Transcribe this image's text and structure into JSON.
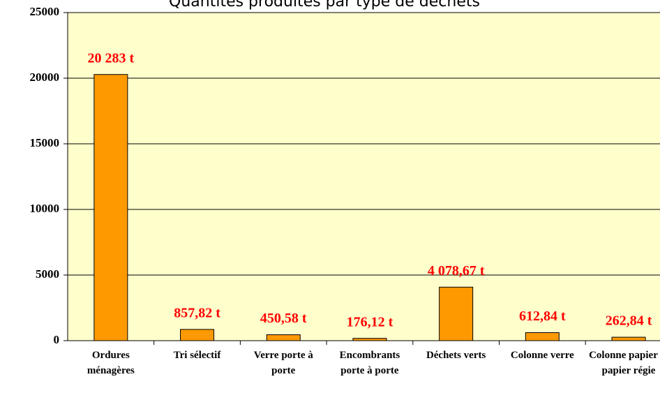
{
  "chart_data": {
    "type": "bar",
    "title": "Quantités produites par type de déchets",
    "categories": [
      "Ordures ménagères",
      "Tri sélectif",
      "Verre porte à porte",
      "Encombrants porte à porte",
      "Déchets verts",
      "Colonne verre",
      "Colonne papier et papier régie"
    ],
    "values": [
      20283,
      857.82,
      450.58,
      176.12,
      4078.67,
      612.84,
      262.84
    ],
    "value_labels": [
      "20 283 t",
      "857,82 t",
      "450,58 t",
      "176,12 t",
      "4 078,67 t",
      "612,84 t",
      "262,84 t"
    ],
    "color": "#ff9900",
    "ylim": [
      0,
      25000
    ],
    "yticks": [
      0,
      5000,
      10000,
      15000,
      20000,
      25000
    ],
    "grid": true
  }
}
